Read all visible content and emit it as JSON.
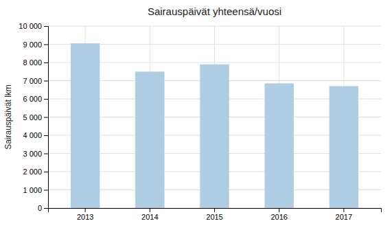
{
  "chart_data": {
    "type": "bar",
    "title": "Sairauspäivät yhteensä/vuosi",
    "ylabel": "Sairauspäivät lkm",
    "categories": [
      "2013",
      "2014",
      "2015",
      "2016",
      "2017"
    ],
    "values": [
      9050,
      7500,
      7900,
      6850,
      6700
    ],
    "color": "#aecde3",
    "ylim": [
      0,
      10000
    ],
    "yticks": [
      0,
      {
        "value": 1000,
        "label": "1 000"
      },
      {
        "value": 2000,
        "label": "2 000"
      },
      {
        "value": 3000,
        "label": "3 000"
      },
      {
        "value": 4000,
        "label": "4 000"
      },
      {
        "value": 5000,
        "label": "5 000"
      },
      {
        "value": 6000,
        "label": "6 000"
      },
      {
        "value": 7000,
        "label": "7 000"
      },
      {
        "value": 8000,
        "label": "8 000"
      },
      {
        "value": 9000,
        "label": "9 000"
      },
      {
        "value": 10000,
        "label": "10 000"
      }
    ],
    "grid": true
  }
}
